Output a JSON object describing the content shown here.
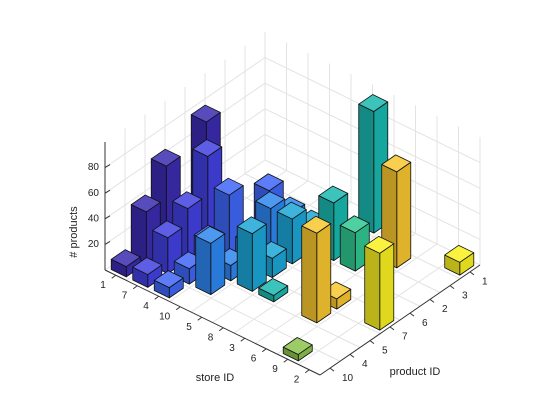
{
  "chart_data": {
    "type": "bar3",
    "xlabel": "store ID",
    "ylabel": "product ID",
    "zlabel": "# products",
    "stores": [
      "1",
      "7",
      "4",
      "10",
      "5",
      "8",
      "3",
      "6",
      "9",
      "2"
    ],
    "products": [
      "1",
      "3",
      "2",
      "6",
      "7",
      "5",
      "4",
      "10"
    ],
    "colors": [
      "#3b2bb0",
      "#4140e0",
      "#3f66f5",
      "#2e87f0",
      "#1ca6d6",
      "#19b8b0",
      "#30c890",
      "#f8c630",
      "#8cc24b",
      "#f9f020"
    ],
    "values": [
      [
        null,
        null,
        null,
        78,
        null,
        65,
        40,
        8
      ],
      [
        null,
        null,
        null,
        null,
        70,
        40,
        28,
        10
      ],
      [
        null,
        null,
        30,
        null,
        48,
        22,
        12,
        8
      ],
      [
        null,
        null,
        20,
        35,
        18,
        12,
        40,
        null
      ],
      [
        null,
        null,
        18,
        35,
        15,
        45,
        null,
        null
      ],
      [
        95,
        null,
        45,
        null,
        null,
        5,
        null,
        null
      ],
      [
        null,
        null,
        30,
        null,
        null,
        null,
        null,
        null
      ],
      [
        null,
        75,
        null,
        null,
        8,
        70,
        null,
        null
      ],
      [
        null,
        null,
        null,
        null,
        null,
        null,
        null,
        5
      ],
      [
        10,
        null,
        null,
        null,
        60,
        null,
        null,
        null
      ]
    ],
    "zlim": [
      0,
      100
    ],
    "zticks": [
      20,
      40,
      60,
      80
    ],
    "grid": true
  }
}
